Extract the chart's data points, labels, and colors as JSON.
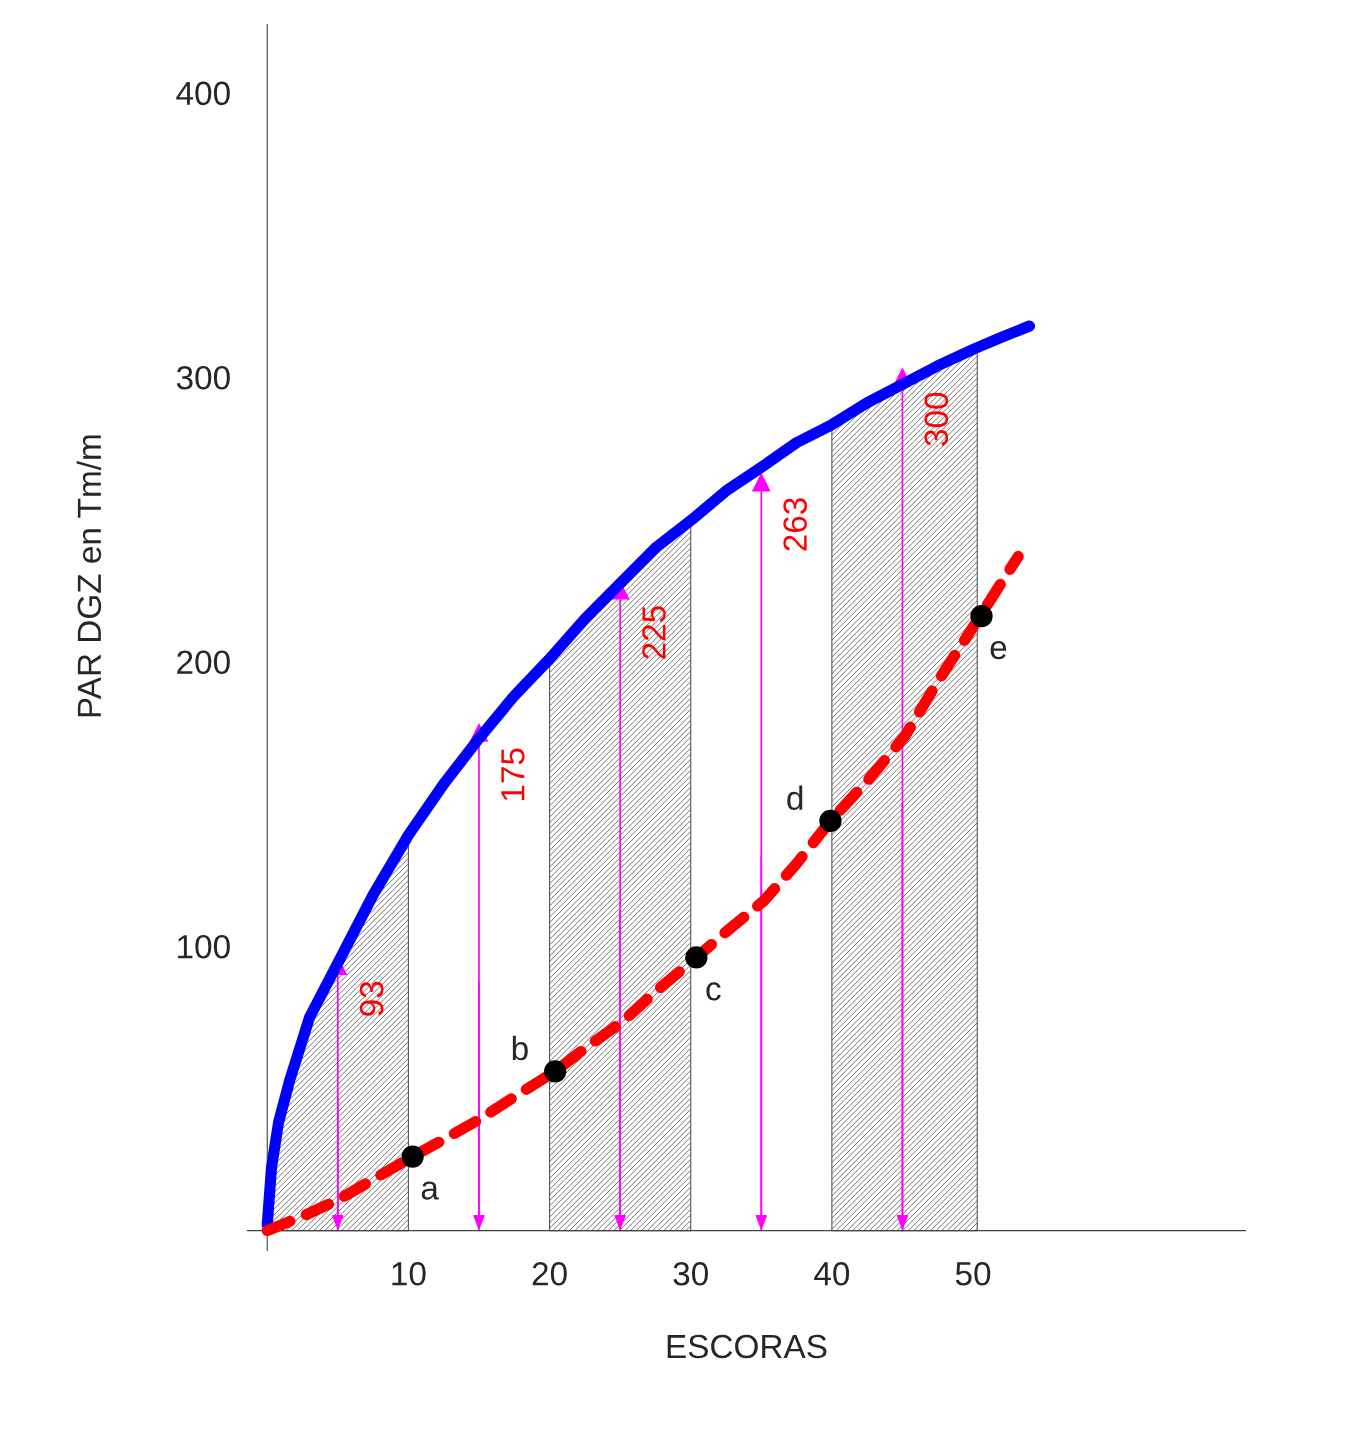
{
  "chart_data": {
    "type": "line",
    "xlabel": "ESCORAS",
    "ylabel": "PAR DGZ en Tm/m",
    "xlim": [
      -1.4,
      69.3
    ],
    "ylim": [
      -7,
      424
    ],
    "xticks": [
      10,
      20,
      30,
      40,
      50
    ],
    "yticks": [
      100,
      200,
      300,
      400
    ],
    "grid": false,
    "legend": false,
    "series": [
      {
        "type": "area",
        "color": "#555555",
        "x": [
          0,
          0.3,
          0.8,
          1.6,
          3,
          5.1,
          7.5,
          10
        ],
        "values": [
          2,
          22,
          38,
          53,
          75,
          95,
          118,
          139
        ]
      },
      {
        "type": "area",
        "color": "#555555",
        "x": [
          20,
          22.5,
          25.3,
          27.5,
          30
        ],
        "values": [
          201,
          215,
          229,
          240,
          249
        ]
      },
      {
        "type": "area",
        "color": "#555555",
        "x": [
          40,
          42.5,
          45.2,
          47.5,
          50.3
        ],
        "values": [
          283,
          291,
          298,
          304,
          310
        ]
      },
      {
        "color": "#0000ff",
        "line_style": "solid",
        "x": [
          0,
          0.3,
          0.8,
          1.6,
          3,
          5.1,
          7.5,
          10,
          12.5,
          15,
          17.5,
          20,
          22.5,
          25.3,
          27.5,
          30.1,
          32.5,
          35.2,
          37.5,
          39.9,
          42.5,
          45.2,
          47.5,
          50.1,
          52,
          54
        ],
        "values": [
          2,
          22,
          38,
          53,
          75,
          95,
          118,
          139,
          157,
          173,
          188,
          201,
          215,
          229,
          240,
          250,
          260,
          269,
          277,
          283,
          291,
          298,
          304,
          310,
          314,
          318
        ]
      },
      {
        "color": "#ff0000",
        "line_style": "dashed",
        "x": [
          0,
          2.5,
          5.1,
          7.5,
          10.3,
          12.5,
          15,
          17.5,
          20.4,
          22.5,
          25.3,
          27.5,
          30.4,
          32.5,
          35.2,
          37.5,
          39.9,
          42.5,
          45.2,
          47.5,
          50.5,
          53.2
        ],
        "values": [
          0,
          5,
          11,
          18,
          26,
          32,
          39,
          47,
          56,
          64,
          74,
          84,
          96,
          105,
          116,
          129,
          144,
          158,
          174,
          193,
          216,
          237
        ]
      },
      {
        "type": "lollipop",
        "color": "#ff00ff",
        "x": [
          5,
          15,
          25,
          35,
          45
        ],
        "values": [
          93,
          175,
          225,
          263,
          300
        ],
        "value_labels": [
          "93",
          "175",
          "225",
          "263",
          "300"
        ]
      },
      {
        "type": "scatter",
        "color": "#000000",
        "marker": "circle",
        "x": [
          10.3,
          20.4,
          30.4,
          39.9,
          50.6
        ],
        "values": [
          26,
          56,
          96,
          144,
          216
        ],
        "value_labels": [
          "a",
          "b",
          "c",
          "d",
          "e"
        ]
      }
    ]
  }
}
